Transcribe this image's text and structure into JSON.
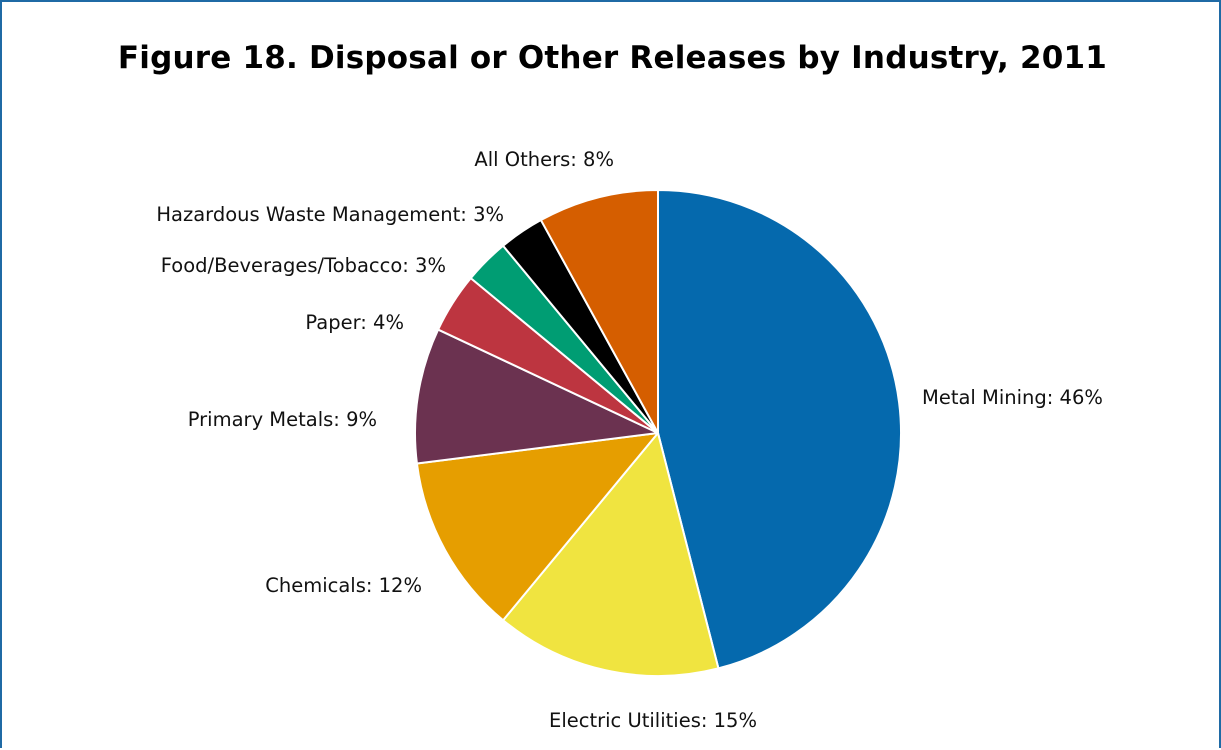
{
  "chart_data": {
    "type": "pie",
    "title": "Figure 18. Disposal or Other Releases by Industry, 2011",
    "slices": [
      {
        "name": "Metal Mining",
        "value": 46,
        "label": "Metal Mining: 46%",
        "color": "#0569ad"
      },
      {
        "name": "Electric Utilities",
        "value": 15,
        "label": "Electric Utilities: 15%",
        "color": "#f0e440"
      },
      {
        "name": "Chemicals",
        "value": 12,
        "label": "Chemicals: 12%",
        "color": "#e69e00"
      },
      {
        "name": "Primary Metals",
        "value": 9,
        "label": "Primary Metals: 9%",
        "color": "#6b3250"
      },
      {
        "name": "Paper",
        "value": 4,
        "label": "Paper: 4%",
        "color": "#bd3540"
      },
      {
        "name": "Food/Beverages/Tobacco",
        "value": 3,
        "label": "Food/Beverages/Tobacco: 3%",
        "color": "#009d73"
      },
      {
        "name": "Hazardous Waste Management",
        "value": 3,
        "label": "Hazardous Waste Management: 3%",
        "color": "#000000"
      },
      {
        "name": "All Others",
        "value": 8,
        "label": "All Others: 8%",
        "color": "#d55e00"
      }
    ],
    "start": "top",
    "direction": "clockwise",
    "legend": "none"
  }
}
